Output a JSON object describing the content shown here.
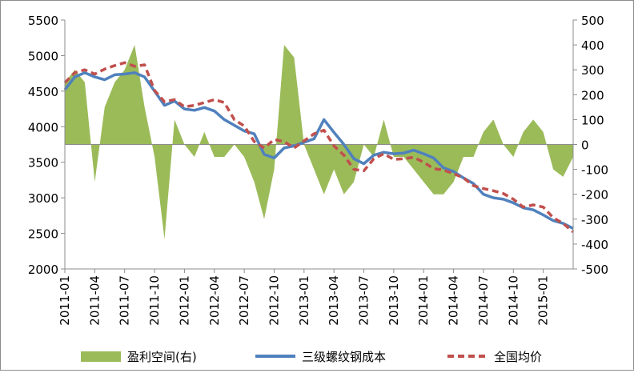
{
  "chart_data": {
    "type": "line",
    "title": "",
    "xlabel": "",
    "ylabel": "",
    "ylim_left": [
      2000,
      5500
    ],
    "ylim_right": [
      -500,
      500
    ],
    "yticks_left": [
      "5500",
      "5000",
      "4500",
      "4000",
      "3500",
      "3000",
      "2500",
      "2000"
    ],
    "yticks_right": [
      "500",
      "400",
      "300",
      "200",
      "100",
      "0",
      "-100",
      "-200",
      "-300",
      "-400",
      "-500"
    ],
    "x_ticks": [
      "2011-01",
      "2011-04",
      "2011-07",
      "2011-10",
      "2012-01",
      "2012-04",
      "2012-07",
      "2012-10",
      "2013-01",
      "2013-04",
      "2013-07",
      "2013-10",
      "2014-01",
      "2014-04",
      "2014-07",
      "2014-10",
      "2015-01"
    ],
    "grid": false,
    "legend_position": "bottom",
    "x": [
      "2011-01",
      "2011-02",
      "2011-03",
      "2011-04",
      "2011-05",
      "2011-06",
      "2011-07",
      "2011-08",
      "2011-09",
      "2011-10",
      "2011-11",
      "2011-12",
      "2012-01",
      "2012-02",
      "2012-03",
      "2012-04",
      "2012-05",
      "2012-06",
      "2012-07",
      "2012-08",
      "2012-09",
      "2012-10",
      "2012-11",
      "2012-12",
      "2013-01",
      "2013-02",
      "2013-03",
      "2013-04",
      "2013-05",
      "2013-06",
      "2013-07",
      "2013-08",
      "2013-09",
      "2013-10",
      "2013-11",
      "2013-12",
      "2014-01",
      "2014-02",
      "2014-03",
      "2014-04",
      "2014-05",
      "2014-06",
      "2014-07",
      "2014-08",
      "2014-09",
      "2014-10",
      "2014-11",
      "2014-12",
      "2015-01",
      "2015-02",
      "2015-03",
      "2015-04"
    ],
    "series": [
      {
        "name": "盈利空间(右)",
        "axis": "right",
        "kind": "area",
        "color": "#9BBB59",
        "values": [
          250,
          300,
          250,
          -150,
          150,
          250,
          300,
          400,
          150,
          -50,
          -380,
          100,
          0,
          -50,
          50,
          -50,
          -50,
          0,
          -50,
          -150,
          -300,
          -100,
          400,
          350,
          0,
          -100,
          -200,
          -100,
          -200,
          -150,
          0,
          -50,
          100,
          -50,
          -50,
          -100,
          -150,
          -200,
          -200,
          -150,
          -50,
          -50,
          50,
          100,
          0,
          -50,
          50,
          100,
          50,
          -100,
          -130,
          -50
        ]
      },
      {
        "name": "三级螺纹钢成本",
        "axis": "left",
        "kind": "line",
        "color": "#4F81BD",
        "values": [
          4520,
          4700,
          4760,
          4700,
          4660,
          4730,
          4740,
          4760,
          4700,
          4500,
          4300,
          4360,
          4250,
          4230,
          4270,
          4220,
          4100,
          4020,
          3940,
          3900,
          3610,
          3560,
          3700,
          3730,
          3780,
          3830,
          4100,
          3920,
          3750,
          3550,
          3480,
          3600,
          3640,
          3620,
          3630,
          3670,
          3620,
          3560,
          3420,
          3370,
          3280,
          3200,
          3050,
          3000,
          2980,
          2930,
          2860,
          2830,
          2760,
          2680,
          2640,
          2570
        ]
      },
      {
        "name": "全国均价",
        "axis": "left",
        "kind": "line",
        "dashed": true,
        "color": "#C0504D",
        "values": [
          4620,
          4760,
          4800,
          4740,
          4810,
          4860,
          4900,
          4850,
          4870,
          4510,
          4350,
          4380,
          4280,
          4300,
          4340,
          4380,
          4340,
          4100,
          4010,
          3790,
          3700,
          3820,
          3790,
          3700,
          3800,
          3900,
          3950,
          3730,
          3600,
          3400,
          3380,
          3550,
          3620,
          3540,
          3550,
          3570,
          3500,
          3410,
          3390,
          3340,
          3280,
          3170,
          3130,
          3100,
          3060,
          2980,
          2870,
          2900,
          2870,
          2720,
          2640,
          2520
        ]
      }
    ]
  },
  "icons": {
    "area_swatch": "green-rectangle",
    "solid_line": "blue-line",
    "dashed_line": "red-dashed-line"
  }
}
